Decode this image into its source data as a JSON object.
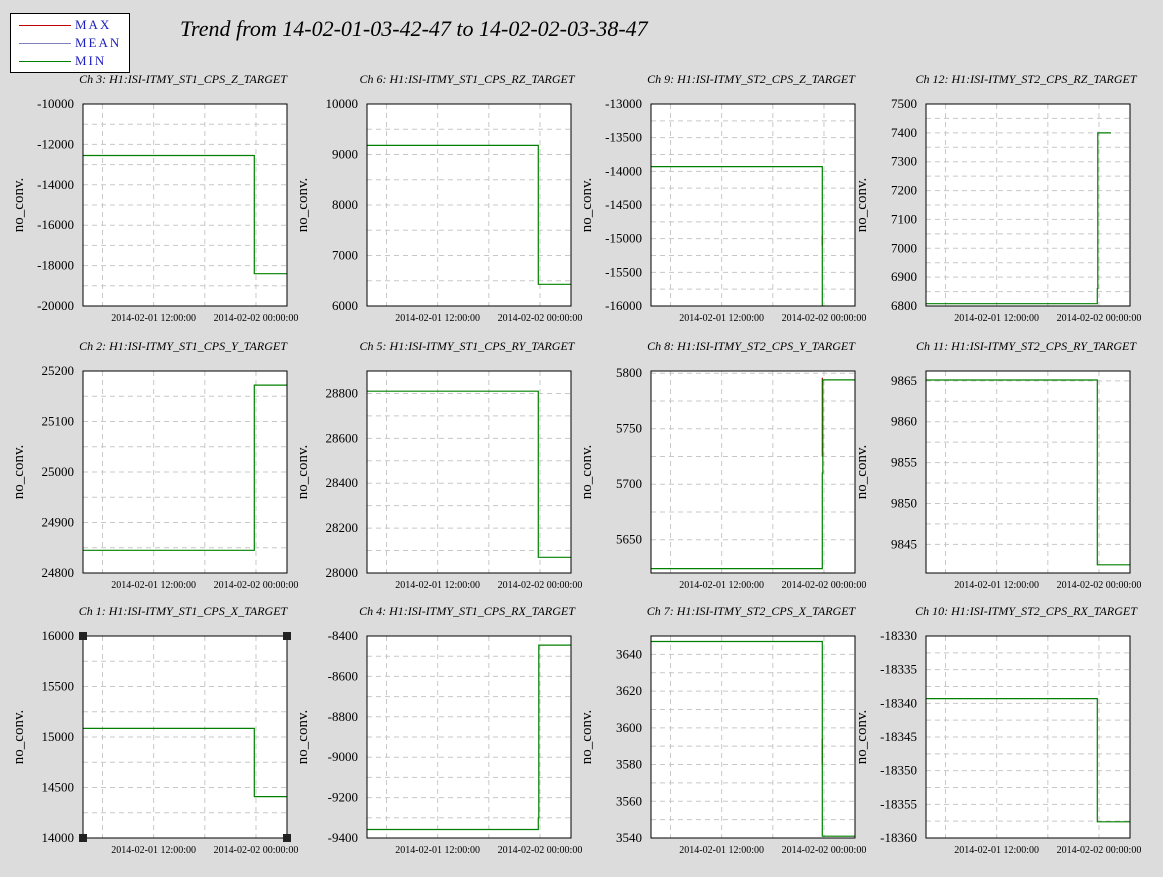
{
  "title": "Trend from 14-02-01-03-42-47 to 14-02-02-03-38-47",
  "legend": [
    {
      "label": "MAX",
      "color": "#c00000"
    },
    {
      "label": "MEAN",
      "color": "#8080c0"
    },
    {
      "label": "MIN",
      "color": "#008000"
    }
  ],
  "colors": {
    "background": "#dcdcdc",
    "plot": "#ffffff",
    "grid": "#c8c8c8"
  },
  "chart_data": [
    {
      "type": "line",
      "title": "Ch 3: H1:ISI-ITMY_ST1_CPS_Z_TARGET",
      "ylabel": "no_conv.",
      "ylim": [
        -20000,
        -10000
      ],
      "yticks": [
        -10000,
        -12000,
        -14000,
        -16000,
        -18000,
        -20000
      ],
      "ytick_labels": [
        "-10000",
        "-12000",
        "-14000",
        "-16000",
        "-18000",
        "-20000"
      ],
      "xlim": [
        0,
        23.93
      ],
      "xticks": [
        8.29,
        20.29
      ],
      "xtick_labels": [
        "2014-02-01 12:00:00",
        "2014-02-02 00:00:00"
      ],
      "series": [
        {
          "name": "MIN",
          "x": [
            0,
            20.1,
            20.1,
            23.93
          ],
          "values": [
            -12550,
            -12550,
            -18400,
            -18400
          ]
        }
      ]
    },
    {
      "type": "line",
      "title": "Ch 6: H1:ISI-ITMY_ST1_CPS_RZ_TARGET",
      "ylabel": "no_conv.",
      "ylim": [
        6000,
        10000
      ],
      "yticks": [
        10000,
        9000,
        8000,
        7000,
        6000
      ],
      "ytick_labels": [
        "10000",
        "9000",
        "8000",
        "7000",
        "6000"
      ],
      "xlim": [
        0,
        23.93
      ],
      "xticks": [
        8.29,
        20.29
      ],
      "xtick_labels": [
        "2014-02-01 12:00:00",
        "2014-02-02 00:00:00"
      ],
      "series": [
        {
          "name": "MIN",
          "x": [
            0,
            20.1,
            20.1,
            23.93
          ],
          "values": [
            9180,
            9180,
            6430,
            6430
          ]
        }
      ]
    },
    {
      "type": "line",
      "title": "Ch 9: H1:ISI-ITMY_ST2_CPS_Z_TARGET",
      "ylabel": "no_conv.",
      "ylim": [
        -16000,
        -13000
      ],
      "yticks": [
        -13000,
        -13500,
        -14000,
        -14500,
        -15000,
        -15500,
        -16000
      ],
      "ytick_labels": [
        "-13000",
        "-13500",
        "-14000",
        "-14500",
        "-15000",
        "-15500",
        "-16000"
      ],
      "xlim": [
        0,
        23.93
      ],
      "xticks": [
        8.29,
        20.29
      ],
      "xtick_labels": [
        "2014-02-01 12:00:00",
        "2014-02-02 00:00:00"
      ],
      "series": [
        {
          "name": "MAX",
          "x": [
            20.1,
            20.1
          ],
          "values": [
            -14950,
            -15100
          ]
        },
        {
          "name": "MIN",
          "x": [
            0,
            20.1,
            20.1
          ],
          "values": [
            -13930,
            -13930,
            -16000
          ]
        }
      ]
    },
    {
      "type": "line",
      "title": "Ch 12: H1:ISI-ITMY_ST2_CPS_RZ_TARGET",
      "ylabel": "no_conv.",
      "ylim": [
        6800,
        7500
      ],
      "yticks": [
        7500,
        7400,
        7300,
        7200,
        7100,
        7000,
        6900,
        6800
      ],
      "ytick_labels": [
        "7500",
        "7400",
        "7300",
        "7200",
        "7100",
        "7000",
        "6900",
        "6800"
      ],
      "xlim": [
        0,
        23.93
      ],
      "xticks": [
        8.29,
        20.29
      ],
      "xtick_labels": [
        "2014-02-01 12:00:00",
        "2014-02-02 00:00:00"
      ],
      "series": [
        {
          "name": "MIN",
          "x": [
            0,
            20.1,
            20.1,
            20.15,
            20.15,
            21.7
          ],
          "values": [
            6808,
            6808,
            6860,
            6860,
            7400,
            7400
          ]
        }
      ]
    },
    {
      "type": "line",
      "title": "Ch 2: H1:ISI-ITMY_ST1_CPS_Y_TARGET",
      "ylabel": "no_conv.",
      "ylim": [
        24800,
        25200
      ],
      "yticks": [
        25200,
        25100,
        25000,
        24900,
        24800
      ],
      "ytick_labels": [
        "25200",
        "25100",
        "25000",
        "24900",
        "24800"
      ],
      "xlim": [
        0,
        23.93
      ],
      "xticks": [
        8.29,
        20.29
      ],
      "xtick_labels": [
        "2014-02-01 12:00:00",
        "2014-02-02 00:00:00"
      ],
      "series": [
        {
          "name": "MIN",
          "x": [
            0,
            20.1,
            20.1,
            23.93
          ],
          "values": [
            24845,
            24845,
            25172,
            25172
          ]
        }
      ]
    },
    {
      "type": "line",
      "title": "Ch 5: H1:ISI-ITMY_ST1_CPS_RY_TARGET",
      "ylabel": "no_conv.",
      "ylim": [
        28000,
        28900
      ],
      "yticks": [
        28800,
        28600,
        28400,
        28200,
        28000
      ],
      "ytick_labels": [
        "28800",
        "28600",
        "28400",
        "28200",
        "28000"
      ],
      "xlim": [
        0,
        23.93
      ],
      "xticks": [
        8.29,
        20.29
      ],
      "xtick_labels": [
        "2014-02-01 12:00:00",
        "2014-02-02 00:00:00"
      ],
      "series": [
        {
          "name": "MIN",
          "x": [
            0,
            20.1,
            20.1,
            23.93
          ],
          "values": [
            28810,
            28810,
            28070,
            28070
          ]
        }
      ]
    },
    {
      "type": "line",
      "title": "Ch 8: H1:ISI-ITMY_ST2_CPS_Y_TARGET",
      "ylabel": "no_conv.",
      "ylim": [
        5620,
        5802
      ],
      "yticks": [
        5800,
        5750,
        5700,
        5650
      ],
      "ytick_labels": [
        "5800",
        "5750",
        "5700",
        "5650"
      ],
      "xlim": [
        0,
        23.93
      ],
      "xticks": [
        8.29,
        20.29
      ],
      "xtick_labels": [
        "2014-02-01 12:00:00",
        "2014-02-02 00:00:00"
      ],
      "series": [
        {
          "name": "MAX",
          "x": [
            20.1,
            20.1
          ],
          "values": [
            5796,
            5725
          ]
        },
        {
          "name": "MIN",
          "x": [
            0,
            20.1,
            20.1,
            20.15,
            20.15,
            23.93
          ],
          "values": [
            5624,
            5624,
            5710,
            5710,
            5794,
            5794
          ]
        }
      ]
    },
    {
      "type": "line",
      "title": "Ch 11: H1:ISI-ITMY_ST2_CPS_RY_TARGET",
      "ylabel": "no_conv.",
      "ylim": [
        9841.5,
        9866.2
      ],
      "yticks": [
        9865,
        9860,
        9855,
        9850,
        9845
      ],
      "ytick_labels": [
        "9865",
        "9860",
        "9855",
        "9850",
        "9845"
      ],
      "xlim": [
        0,
        23.93
      ],
      "xticks": [
        8.29,
        20.29
      ],
      "xtick_labels": [
        "2014-02-01 12:00:00",
        "2014-02-02 00:00:00"
      ],
      "series": [
        {
          "name": "MIN",
          "x": [
            0,
            20.1,
            20.1,
            23.93
          ],
          "values": [
            9865.1,
            9865.1,
            9842.5,
            9842.5
          ]
        }
      ]
    },
    {
      "type": "line",
      "title": "Ch 1: H1:ISI-ITMY_ST1_CPS_X_TARGET",
      "ylabel": "no_conv.",
      "ylim": [
        14000,
        16000
      ],
      "yticks": [
        16000,
        15500,
        15000,
        14500,
        14000
      ],
      "ytick_labels": [
        "16000",
        "15500",
        "15000",
        "14500",
        "14000"
      ],
      "xlim": [
        0,
        23.93
      ],
      "xticks": [
        8.29,
        20.29
      ],
      "xtick_labels": [
        "2014-02-01 12:00:00",
        "2014-02-02 00:00:00"
      ],
      "selected": true,
      "series": [
        {
          "name": "MIN",
          "x": [
            0,
            20.1,
            20.1,
            23.93
          ],
          "values": [
            15085,
            15085,
            14410,
            14410
          ]
        }
      ]
    },
    {
      "type": "line",
      "title": "Ch 4: H1:ISI-ITMY_ST1_CPS_RX_TARGET",
      "ylabel": "no_conv.",
      "ylim": [
        -9400,
        -8400
      ],
      "yticks": [
        -8400,
        -8600,
        -8800,
        -9000,
        -9200,
        -9400
      ],
      "ytick_labels": [
        "-8400",
        "-8600",
        "-8800",
        "-9000",
        "-9200",
        "-9400"
      ],
      "xlim": [
        0,
        23.93
      ],
      "xticks": [
        8.29,
        20.29
      ],
      "xtick_labels": [
        "2014-02-01 12:00:00",
        "2014-02-02 00:00:00"
      ],
      "series": [
        {
          "name": "MIN",
          "x": [
            0,
            20.1,
            20.1,
            20.15,
            20.15,
            23.93
          ],
          "values": [
            -9358,
            -9358,
            -9300,
            -9300,
            -8445,
            -8445
          ]
        }
      ]
    },
    {
      "type": "line",
      "title": "Ch 7: H1:ISI-ITMY_ST2_CPS_X_TARGET",
      "ylabel": "no_conv.",
      "ylim": [
        3540,
        3650
      ],
      "yticks": [
        3640,
        3620,
        3600,
        3580,
        3560,
        3540
      ],
      "ytick_labels": [
        "3640",
        "3620",
        "3600",
        "3580",
        "3560",
        "3540"
      ],
      "xlim": [
        0,
        23.93
      ],
      "xticks": [
        8.29,
        20.29
      ],
      "xtick_labels": [
        "2014-02-01 12:00:00",
        "2014-02-02 00:00:00"
      ],
      "series": [
        {
          "name": "MAX",
          "x": [
            20.1,
            20.1
          ],
          "values": [
            3594,
            3580
          ]
        },
        {
          "name": "MIN",
          "x": [
            0,
            20.1,
            20.1,
            23.93
          ],
          "values": [
            3647,
            3647,
            3541,
            3541
          ]
        }
      ]
    },
    {
      "type": "line",
      "title": "Ch 10: H1:ISI-ITMY_ST2_CPS_RX_TARGET",
      "ylabel": "no_conv.",
      "ylim": [
        -18360,
        -18330
      ],
      "yticks": [
        -18330,
        -18335,
        -18340,
        -18345,
        -18350,
        -18355,
        -18360
      ],
      "ytick_labels": [
        "-18330",
        "-18335",
        "-18340",
        "-18345",
        "-18350",
        "-18355",
        "-18360"
      ],
      "xlim": [
        0,
        23.93
      ],
      "xticks": [
        8.29,
        20.29
      ],
      "xtick_labels": [
        "2014-02-01 12:00:00",
        "2014-02-02 00:00:00"
      ],
      "series": [
        {
          "name": "MIN",
          "x": [
            0,
            20.1,
            20.1,
            23.93
          ],
          "values": [
            -18339.3,
            -18339.3,
            -18357.6,
            -18357.6
          ]
        }
      ]
    }
  ]
}
